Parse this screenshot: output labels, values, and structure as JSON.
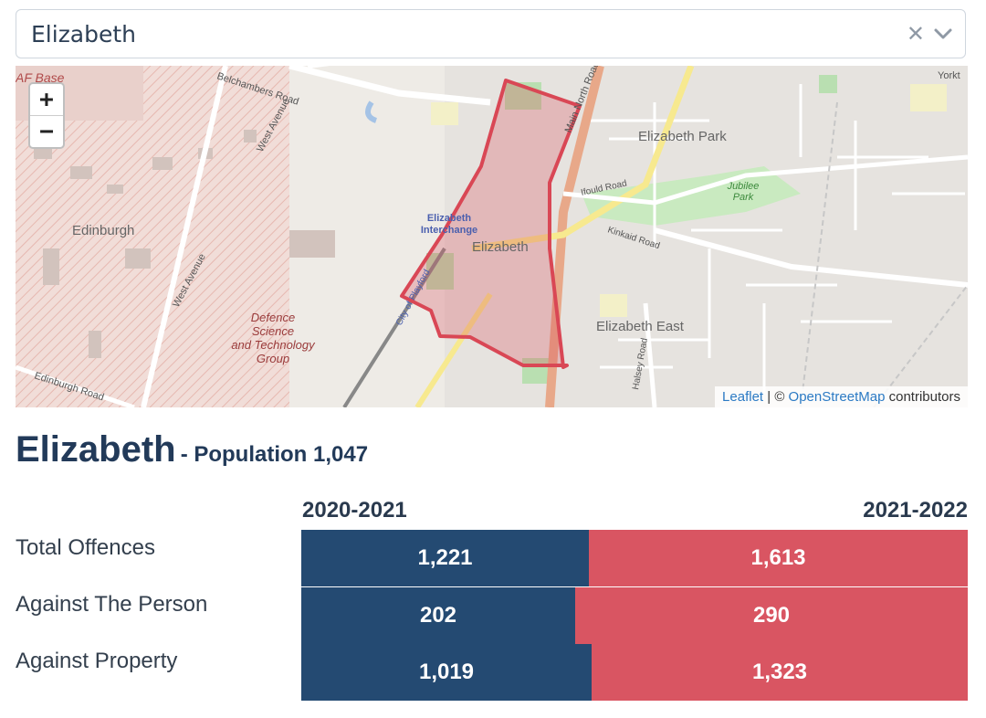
{
  "search": {
    "value": "Elizabeth"
  },
  "map": {
    "labels": {
      "raaf": "AF Base",
      "belchambers": "Belchambers Road",
      "west_avenue": "West Avenue",
      "west_avenue2": "West Avenue",
      "edinburgh": "Edinburgh",
      "edinburgh_road": "Edinburgh Road",
      "defence1": "Defence",
      "defence2": "Science",
      "defence3": "and Technology",
      "defence4": "Group",
      "interchange1": "Elizabeth",
      "interchange2": "Interchange",
      "elizabeth": "Elizabeth",
      "elizabeth_park": "Elizabeth Park",
      "elizabeth_east": "Elizabeth East",
      "ifould": "Ifould Road",
      "kinkaid": "Kinkaid Road",
      "jubilee1": "Jubilee",
      "jubilee2": "Park",
      "main_north": "Main North Road",
      "halsey": "Halsey Road",
      "playford": "City of Playford",
      "yorktown": "Yorkt"
    },
    "zoom_in": "+",
    "zoom_out": "−",
    "attribution": {
      "leaflet": "Leaflet",
      "sep": " | © ",
      "osm": "OpenStreetMap",
      "rest": " contributors"
    }
  },
  "suburb": {
    "name": "Elizabeth",
    "population_label": "- Population 1,047"
  },
  "years": {
    "left": "2020-2021",
    "right": "2021-2022"
  },
  "stats": [
    {
      "label": "Total Offences",
      "v2021": "1,221",
      "v2122": "1,613",
      "n2021": 1221,
      "n2122": 1613
    },
    {
      "label": "Against The Person",
      "v2021": "202",
      "v2122": "290",
      "n2021": 202,
      "n2122": 290
    },
    {
      "label": "Against Property",
      "v2021": "1,019",
      "v2122": "1,323",
      "n2021": 1019,
      "n2122": 1323
    }
  ],
  "colors": {
    "year_a": "#244a72",
    "year_b": "#d95562",
    "boundary": "#d94755"
  }
}
